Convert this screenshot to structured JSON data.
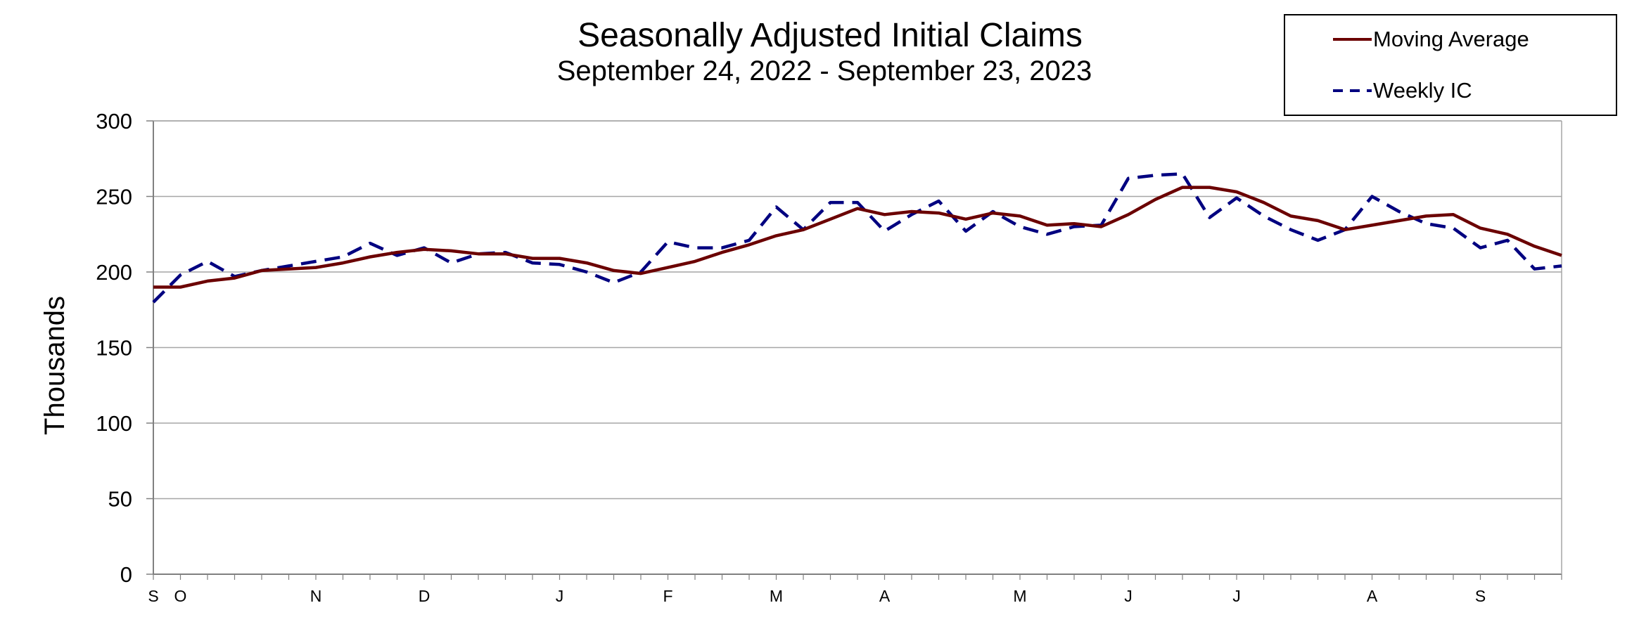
{
  "chart_data": {
    "type": "line",
    "title": "Seasonally Adjusted Initial Claims",
    "subtitle": "September 24, 2022 - September 23, 2023",
    "ylabel": "Thousands",
    "ylim": [
      0,
      300
    ],
    "yticks": [
      0,
      50,
      100,
      150,
      200,
      250,
      300
    ],
    "grid": true,
    "legend_position": "top-right",
    "month_labels": [
      "S",
      "O",
      "N",
      "D",
      "J",
      "F",
      "M",
      "A",
      "M",
      "J",
      "J",
      "A",
      "S"
    ],
    "month_label_week_index": [
      0,
      1,
      6,
      10,
      15,
      19,
      23,
      27,
      32,
      36,
      40,
      45,
      49
    ],
    "weeks": 53,
    "series": [
      {
        "name": "Moving Average",
        "color": "#6b0000",
        "style": "solid",
        "values": [
          190,
          190,
          194,
          196,
          201,
          202,
          203,
          206,
          210,
          213,
          215,
          214,
          212,
          212,
          209,
          209,
          206,
          201,
          199,
          203,
          207,
          213,
          218,
          224,
          228,
          235,
          242,
          238,
          240,
          239,
          235,
          239,
          237,
          231,
          232,
          230,
          238,
          248,
          256,
          256,
          253,
          246,
          237,
          234,
          228,
          231,
          234,
          237,
          238,
          229,
          225,
          217,
          211
        ]
      },
      {
        "name": "Weekly IC",
        "color": "#000080",
        "style": "dashed",
        "values": [
          180,
          198,
          207,
          197,
          201,
          204,
          207,
          210,
          219,
          211,
          216,
          206,
          212,
          213,
          206,
          205,
          200,
          193,
          200,
          220,
          216,
          216,
          221,
          243,
          228,
          246,
          246,
          227,
          238,
          247,
          227,
          240,
          230,
          225,
          230,
          231,
          262,
          264,
          265,
          236,
          249,
          237,
          228,
          221,
          228,
          250,
          240,
          232,
          229,
          216,
          221,
          202,
          204
        ]
      }
    ]
  }
}
